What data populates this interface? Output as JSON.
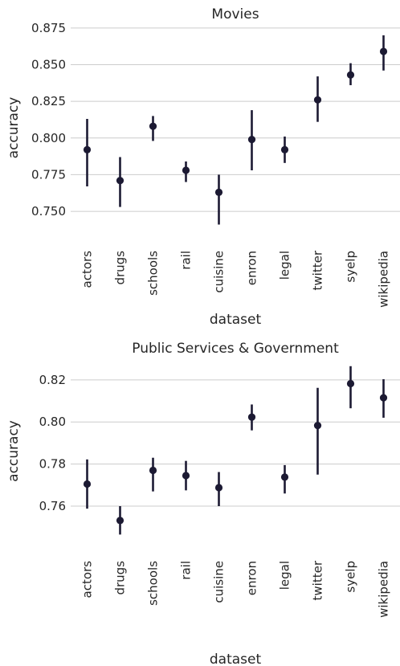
{
  "chart_data": [
    {
      "type": "pointplot",
      "title": "Movies",
      "xlabel": "dataset",
      "ylabel": "accuracy",
      "categories": [
        "actors",
        "drugs",
        "schools",
        "rail",
        "cuisine",
        "enron",
        "legal",
        "twitter",
        "syelp",
        "wikipedia"
      ],
      "values": [
        0.792,
        0.771,
        0.808,
        0.778,
        0.763,
        0.799,
        0.792,
        0.826,
        0.843,
        0.859
      ],
      "ci_low": [
        0.767,
        0.753,
        0.798,
        0.77,
        0.741,
        0.778,
        0.783,
        0.811,
        0.836,
        0.846
      ],
      "ci_high": [
        0.813,
        0.787,
        0.815,
        0.784,
        0.775,
        0.819,
        0.801,
        0.842,
        0.851,
        0.87
      ],
      "yticks": [
        0.75,
        0.775,
        0.8,
        0.825,
        0.85,
        0.875
      ],
      "ytick_labels": [
        "0.750",
        "0.775",
        "0.800",
        "0.825",
        "0.850",
        "0.875"
      ],
      "ylim": [
        0.738,
        0.876
      ],
      "grid": "horizontal",
      "color": "#1c1a33"
    },
    {
      "type": "pointplot",
      "title": "Public Services & Government",
      "xlabel": "dataset",
      "ylabel": "accuracy",
      "categories": [
        "actors",
        "drugs",
        "schools",
        "rail",
        "cuisine",
        "enron",
        "legal",
        "twitter",
        "syelp",
        "wikipedia"
      ],
      "values": [
        0.7705,
        0.7532,
        0.777,
        0.7745,
        0.7688,
        0.8023,
        0.7738,
        0.7983,
        0.8182,
        0.8115
      ],
      "ci_low": [
        0.7588,
        0.7465,
        0.767,
        0.7675,
        0.76,
        0.796,
        0.766,
        0.775,
        0.8065,
        0.802
      ],
      "ci_high": [
        0.7822,
        0.76,
        0.783,
        0.7815,
        0.7762,
        0.8083,
        0.7795,
        0.8162,
        0.8265,
        0.8203
      ],
      "yticks": [
        0.76,
        0.78,
        0.8,
        0.82
      ],
      "ytick_labels": [
        "0.76",
        "0.78",
        "0.80",
        "0.82"
      ],
      "ylim": [
        0.7455,
        0.8268
      ],
      "grid": "horizontal",
      "color": "#1c1a33"
    }
  ]
}
